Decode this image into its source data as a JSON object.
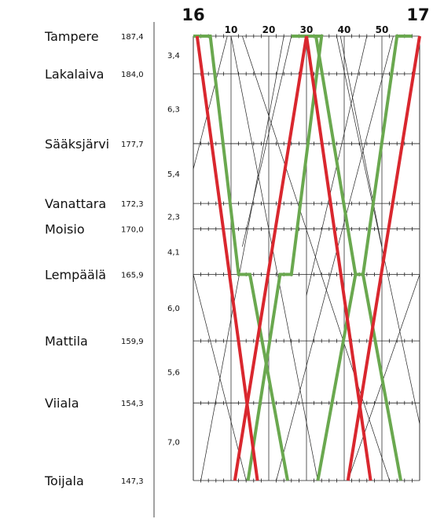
{
  "chart_data": {
    "type": "train-graph",
    "hours": [
      "16",
      "17"
    ],
    "minute_labels": [
      "10",
      "20",
      "30",
      "40",
      "50"
    ],
    "minute_values": [
      10,
      20,
      30,
      40,
      50
    ],
    "x_range_minutes": [
      0,
      60
    ],
    "stations": [
      {
        "name": "Tampere",
        "km_label": "187,4",
        "km": 187.4
      },
      {
        "name": "Lakalaiva",
        "km_label": "184,0",
        "km": 184.0
      },
      {
        "name": "Sääksjärvi",
        "km_label": "177,7",
        "km": 177.7
      },
      {
        "name": "Vanattara",
        "km_label": "172,3",
        "km": 172.3
      },
      {
        "name": "Moisio",
        "km_label": "170,0",
        "km": 170.0
      },
      {
        "name": "Lempäälä",
        "km_label": "165,9",
        "km": 165.9
      },
      {
        "name": "Mattila",
        "km_label": "159,9",
        "km": 159.9
      },
      {
        "name": "Viiala",
        "km_label": "154,3",
        "km": 154.3
      },
      {
        "name": "Toijala",
        "km_label": "147,3",
        "km": 147.3
      }
    ],
    "segments": [
      "3,4",
      "6,3",
      "5,4",
      "2,3",
      "4,1",
      "6,0",
      "5,6",
      "7,0"
    ],
    "highlight_colors": {
      "red": "#d9272e",
      "green": "#6aa84f"
    },
    "red_trains": [
      [
        [
          1,
          187.4
        ],
        [
          17,
          147.3
        ]
      ],
      [
        [
          30,
          187.4
        ],
        [
          11,
          147.3
        ]
      ],
      [
        [
          30,
          187.4
        ],
        [
          47,
          147.3
        ]
      ],
      [
        [
          60,
          187.4
        ],
        [
          41,
          147.3
        ]
      ]
    ],
    "green_trains": [
      [
        [
          0,
          187.4
        ],
        [
          4.5,
          187.4
        ],
        [
          12,
          165.9
        ],
        [
          15,
          165.9
        ],
        [
          25,
          147.3
        ]
      ],
      [
        [
          26,
          187.4
        ],
        [
          34,
          187.4
        ],
        [
          26,
          165.9
        ],
        [
          23,
          165.9
        ],
        [
          14.5,
          147.3
        ]
      ],
      [
        [
          28,
          187.4
        ],
        [
          32.5,
          187.4
        ],
        [
          43,
          165.9
        ],
        [
          45,
          165.9
        ],
        [
          55,
          147.3
        ]
      ],
      [
        [
          58,
          187.4
        ],
        [
          54,
          187.4
        ],
        [
          45,
          165.9
        ],
        [
          43,
          165.9
        ],
        [
          33,
          147.3
        ]
      ]
    ],
    "background_trains": [
      [
        [
          10,
          187.4
        ],
        [
          33,
          147.3
        ]
      ],
      [
        [
          13,
          187.4
        ],
        [
          52,
          147.3
        ]
      ],
      [
        [
          38,
          187.4
        ],
        [
          60,
          152.4
        ]
      ],
      [
        [
          39,
          187.4
        ],
        [
          50,
          168.4
        ]
      ],
      [
        [
          24,
          187.4
        ],
        [
          2,
          147.3
        ]
      ],
      [
        [
          26,
          187.4
        ],
        [
          13,
          168.4
        ]
      ],
      [
        [
          53,
          187.4
        ],
        [
          22,
          147.3
        ]
      ],
      [
        [
          0,
          175.4
        ],
        [
          9,
          187.4
        ]
      ],
      [
        [
          0,
          165.9
        ],
        [
          14,
          147.3
        ]
      ],
      [
        [
          60,
          165.9
        ],
        [
          41,
          147.3
        ]
      ],
      [
        [
          46,
          187.4
        ],
        [
          30,
          164.0
        ]
      ]
    ]
  }
}
